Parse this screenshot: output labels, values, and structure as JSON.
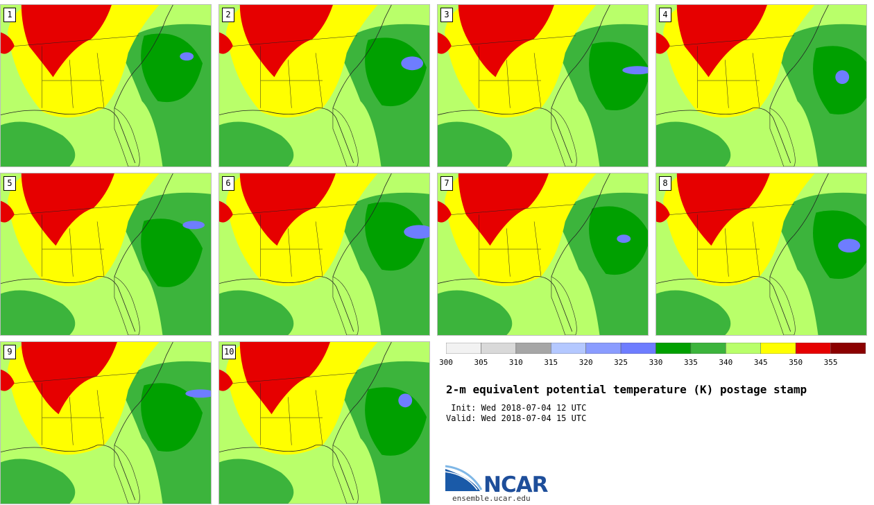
{
  "panels": [
    {
      "label": "1",
      "variant": 0
    },
    {
      "label": "2",
      "variant": 1
    },
    {
      "label": "3",
      "variant": 2
    },
    {
      "label": "4",
      "variant": 3
    },
    {
      "label": "5",
      "variant": 4
    },
    {
      "label": "6",
      "variant": 5
    },
    {
      "label": "7",
      "variant": 6
    },
    {
      "label": "8",
      "variant": 7
    },
    {
      "label": "9",
      "variant": 8
    },
    {
      "label": "10",
      "variant": 9
    }
  ],
  "colorbar": {
    "colors": [
      "#f2f2f2",
      "#d9d9d9",
      "#a6a6a6",
      "#b4c8ff",
      "#8a9cff",
      "#6e7dff",
      "#00a000",
      "#3cb43c",
      "#b9ff6a",
      "#ffff00",
      "#e60000",
      "#8b0000"
    ],
    "labels": [
      "300",
      "305",
      "310",
      "315",
      "320",
      "325",
      "330",
      "335",
      "340",
      "345",
      "350",
      "355"
    ]
  },
  "title": "2-m equivalent potential temperature (K) postage stamp",
  "init": " Init: Wed 2018-07-04 12 UTC",
  "valid": "Valid: Wed 2018-07-04 15 UTC",
  "logo": {
    "text": "NCAR",
    "url": "ensemble.ucar.edu"
  }
}
